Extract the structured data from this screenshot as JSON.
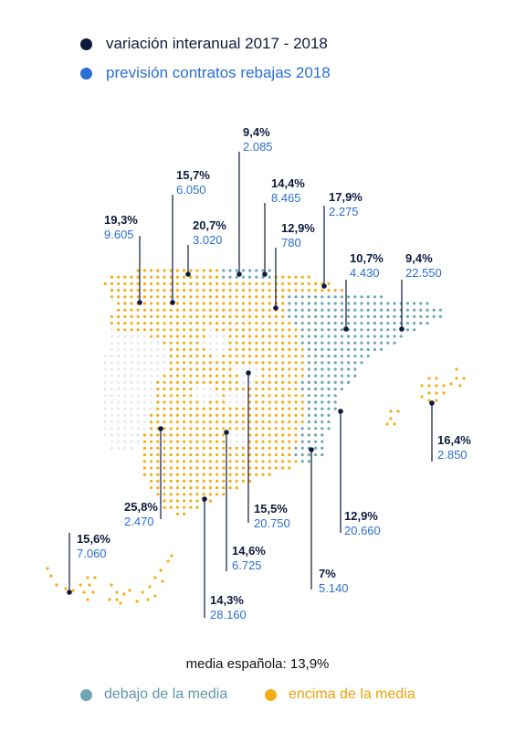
{
  "legend": {
    "items": [
      {
        "label": "variación interanual 2017 - 2018",
        "color": "#0f1b3d"
      },
      {
        "label": "previsión contratos rebajas 2018",
        "color": "#2a6fd1"
      }
    ]
  },
  "average": {
    "label": "media española: 13,9%"
  },
  "category_legend": {
    "items": [
      {
        "label": "debajo de la media",
        "color": "#6ea7b3"
      },
      {
        "label": "encima de la media",
        "color": "#f3ad19"
      }
    ]
  },
  "regions": [
    {
      "pct": "19,3%",
      "count": "9.605"
    },
    {
      "pct": "15,7%",
      "count": "6.050"
    },
    {
      "pct": "20,7%",
      "count": "3.020"
    },
    {
      "pct": "9,4%",
      "count": "2.085"
    },
    {
      "pct": "14,4%",
      "count": "8.465"
    },
    {
      "pct": "12,9%",
      "count": "780"
    },
    {
      "pct": "17,9%",
      "count": "2.275"
    },
    {
      "pct": "10,7%",
      "count": "4.430"
    },
    {
      "pct": "9,4%",
      "count": "22.550"
    },
    {
      "pct": "16,4%",
      "count": "2.850"
    },
    {
      "pct": "25,8%",
      "count": "2.470"
    },
    {
      "pct": "15,5%",
      "count": "20.750"
    },
    {
      "pct": "12,9%",
      "count": "20.660"
    },
    {
      "pct": "14,6%",
      "count": "6.725"
    },
    {
      "pct": "7%",
      "count": "5.140"
    },
    {
      "pct": "14,3%",
      "count": "28.160"
    },
    {
      "pct": "15,6%",
      "count": "7.060"
    }
  ]
}
